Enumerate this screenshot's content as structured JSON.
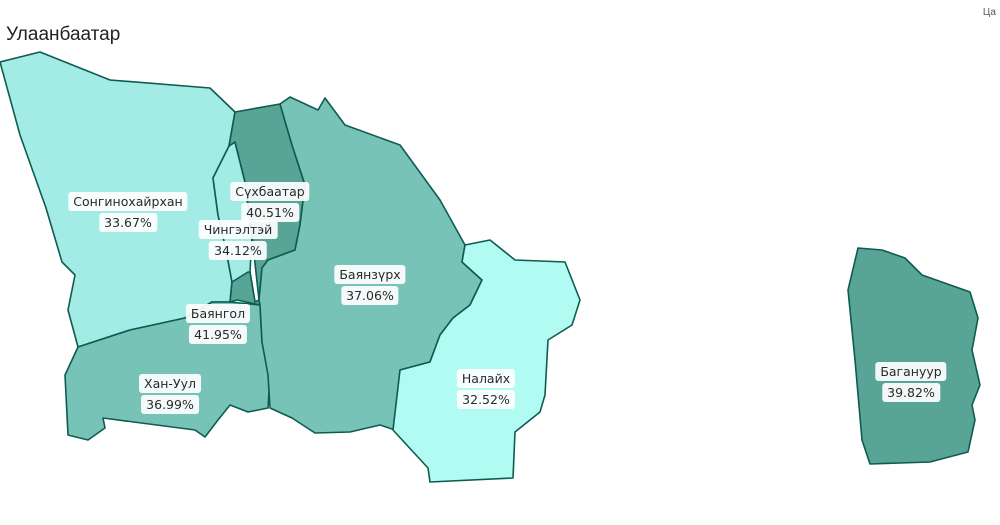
{
  "title": "Улаанбаатар",
  "corner_note": "Ца",
  "colors": {
    "border": "#0e5c4f"
  },
  "regions": [
    {
      "key": "songinokhairkhan",
      "name": "Сонгинохайрхан",
      "value": "33.67%",
      "fill": "#a3ece6"
    },
    {
      "key": "sukhbaatar",
      "name": "Сүхбаатар",
      "value": "40.51%",
      "fill": "#58a497"
    },
    {
      "key": "chingeltei",
      "name": "Чингэлтэй",
      "value": "34.12%",
      "fill": "#a3ece6"
    },
    {
      "key": "bayanzurkh",
      "name": "Баянзүрх",
      "value": "37.06%",
      "fill": "#78c3b8"
    },
    {
      "key": "bayangol",
      "name": "Баянгол",
      "value": "41.95%",
      "fill": "#58a497"
    },
    {
      "key": "khanuul",
      "name": "Хан-Уул",
      "value": "36.99%",
      "fill": "#78c3b8"
    },
    {
      "key": "nalaikh",
      "name": "Налайх",
      "value": "32.52%",
      "fill": "#b1fbf3"
    },
    {
      "key": "baganuur",
      "name": "Багануур",
      "value": "39.82%",
      "fill": "#58a497"
    }
  ]
}
